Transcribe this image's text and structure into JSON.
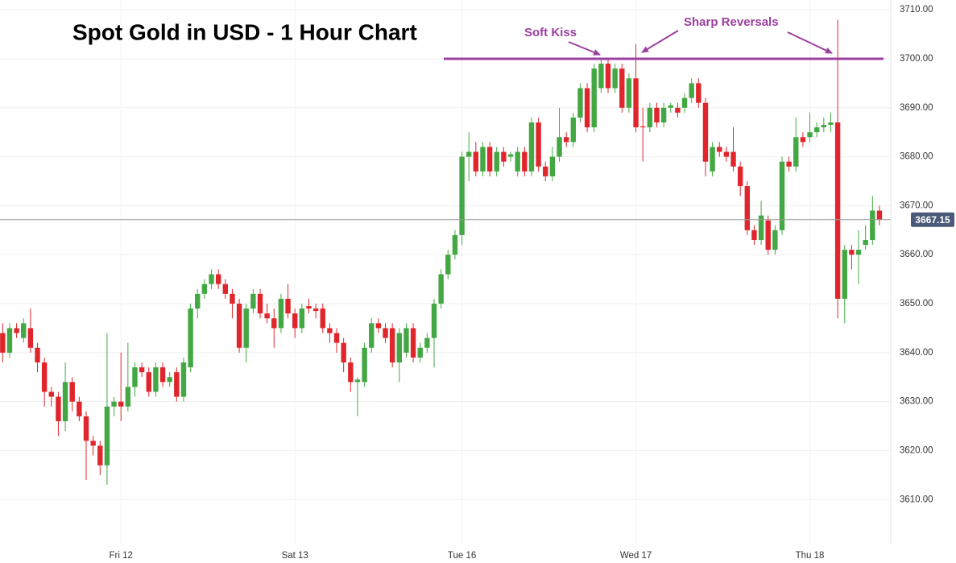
{
  "chart_data": {
    "type": "candlestick",
    "title": "Spot Gold in USD - 1 Hour Chart",
    "annotations": [
      {
        "text": "Soft Kiss"
      },
      {
        "text": "Sharp Reversals"
      }
    ],
    "hline": {
      "value": 3700,
      "color": "#9b3fa0"
    },
    "current_price": 3667.15,
    "up_color": "#43a843",
    "down_color": "#e0262c",
    "grid": true,
    "ylim": [
      3601,
      3712
    ],
    "yticks": [
      {
        "value": 3610,
        "label": "3610.00"
      },
      {
        "value": 3620,
        "label": "3620.00"
      },
      {
        "value": 3630,
        "label": "3630.00"
      },
      {
        "value": 3640,
        "label": "3640.00"
      },
      {
        "value": 3650,
        "label": "3650.00"
      },
      {
        "value": 3660,
        "label": "3660.00"
      },
      {
        "value": 3670,
        "label": "3670.00"
      },
      {
        "value": 3680,
        "label": "3680.00"
      },
      {
        "value": 3690,
        "label": "3690.00"
      },
      {
        "value": 3700,
        "label": "3700.00"
      },
      {
        "value": 3710,
        "label": "3710.00"
      }
    ],
    "categories": [
      null,
      null,
      null,
      null,
      null,
      null,
      null,
      null,
      null,
      null,
      null,
      null,
      null,
      null,
      null,
      null,
      null,
      "Fri 12",
      null,
      null,
      null,
      null,
      null,
      null,
      null,
      null,
      null,
      null,
      null,
      null,
      null,
      null,
      null,
      null,
      null,
      null,
      null,
      null,
      null,
      null,
      null,
      null,
      "Sat 13",
      null,
      null,
      null,
      null,
      null,
      null,
      null,
      null,
      null,
      null,
      null,
      null,
      null,
      null,
      null,
      null,
      null,
      null,
      null,
      null,
      null,
      null,
      null,
      "Tue 16",
      null,
      null,
      null,
      null,
      null,
      null,
      null,
      null,
      null,
      null,
      null,
      null,
      null,
      null,
      null,
      null,
      null,
      null,
      null,
      null,
      null,
      null,
      null,
      null,
      "Wed 17",
      null,
      null,
      null,
      null,
      null,
      null,
      null,
      null,
      null,
      null,
      null,
      null,
      null,
      null,
      null,
      null,
      null,
      null,
      null,
      null,
      null,
      null,
      null,
      null,
      "Thu 18",
      null,
      null,
      null,
      null,
      null,
      null,
      null,
      null,
      null,
      null
    ],
    "open": [
      3644,
      3640,
      3645,
      3643,
      3645,
      3641,
      3638,
      3632,
      3631,
      3626,
      3634,
      3630,
      3627,
      3622,
      3621,
      3617,
      3629,
      3630,
      3629,
      3633,
      3637,
      3636,
      3632,
      3637,
      3634,
      3636,
      3631,
      3637,
      3649,
      3652,
      3654,
      3656,
      3654,
      3652,
      3650,
      3641,
      3649,
      3652,
      3648,
      3647,
      3645,
      3651,
      3648,
      3645,
      3649.5,
      3649,
      3649,
      3645,
      3644,
      3642,
      3638,
      3634,
      3634,
      3641,
      3646,
      3645,
      3645,
      3638,
      3640,
      3645,
      3639,
      3641,
      3643,
      3650,
      3656,
      3660,
      3664,
      3680,
      3681,
      3677,
      3682,
      3677,
      3681,
      3680,
      3677,
      3681,
      3677,
      3687,
      3678,
      3676,
      3680,
      3684,
      3683,
      3688,
      3694,
      3686,
      3694,
      3699,
      3694,
      3698,
      3690,
      3696,
      3686.2,
      3686,
      3690,
      3687,
      3690,
      3690,
      3690,
      3692,
      3695,
      3691,
      3677,
      3682,
      3681,
      3681,
      3678,
      3674,
      3665,
      3663,
      3667,
      3661,
      3665,
      3679,
      3678,
      3684,
      3684,
      3685,
      3686,
      3686.5,
      3687,
      3651,
      3661,
      3660,
      3662,
      3663,
      3669
    ],
    "high": [
      3646,
      3646,
      3646,
      3647,
      3649,
      3642,
      3639,
      3633,
      3632,
      3638,
      3635,
      3631,
      3628,
      3623,
      3622,
      3644,
      3631,
      3640,
      3642,
      3638,
      3638,
      3637,
      3638,
      3638,
      3636,
      3637,
      3639,
      3650,
      3653,
      3655,
      3657,
      3657,
      3655,
      3653,
      3651,
      3650,
      3653,
      3653,
      3650,
      3649,
      3652,
      3654,
      3649,
      3650,
      3651,
      3650,
      3650,
      3646,
      3645,
      3643,
      3639,
      3635,
      3642,
      3647,
      3647,
      3646,
      3646,
      3645,
      3646,
      3646,
      3642,
      3644,
      3651,
      3657,
      3661,
      3665,
      3681,
      3685,
      3683,
      3683,
      3683,
      3682,
      3682,
      3681,
      3682,
      3682,
      3688,
      3688,
      3679,
      3682,
      3690,
      3685,
      3689,
      3695,
      3695,
      3699,
      3700,
      3700,
      3699,
      3699,
      3697,
      3703,
      3690,
      3691,
      3691,
      3691,
      3691,
      3691,
      3693,
      3696,
      3696,
      3692,
      3683,
      3683,
      3682,
      3686,
      3679,
      3675,
      3666,
      3671,
      3668,
      3666,
      3680,
      3680,
      3688,
      3685,
      3689,
      3687,
      3688,
      3689,
      3708,
      3662,
      3662,
      3665,
      3666,
      3672,
      3670
    ],
    "low": [
      3638,
      3639,
      3643,
      3642,
      3640,
      3636,
      3629,
      3629,
      3623,
      3624,
      3628,
      3626,
      3614,
      3619,
      3615,
      3613,
      3627,
      3626,
      3628,
      3631,
      3635,
      3631,
      3631,
      3633,
      3633,
      3630,
      3630,
      3636,
      3647,
      3651,
      3653,
      3653,
      3651,
      3647,
      3640,
      3638,
      3648,
      3647,
      3646,
      3641,
      3644,
      3647,
      3643,
      3644,
      3648,
      3647,
      3644,
      3642,
      3640,
      3636,
      3632,
      3627,
      3633,
      3640,
      3644,
      3642,
      3637,
      3634,
      3639,
      3638,
      3638,
      3640,
      3637,
      3649,
      3655,
      3659,
      3662,
      3675,
      3676,
      3676,
      3676,
      3676,
      3678,
      3679,
      3676,
      3676,
      3676,
      3677,
      3675,
      3675,
      3679,
      3682,
      3682,
      3687,
      3685,
      3685,
      3693,
      3693,
      3693,
      3689,
      3689,
      3685,
      3679,
      3685,
      3686,
      3686,
      3689,
      3688,
      3689,
      3691,
      3690,
      3676,
      3676,
      3680,
      3679,
      3677,
      3672,
      3664,
      3662,
      3662,
      3660,
      3660,
      3664,
      3677,
      3677,
      3682,
      3683,
      3684,
      3685,
      3685,
      3647,
      3646,
      3657,
      3654,
      3661,
      3662,
      3666
    ],
    "close": [
      3640,
      3645,
      3644,
      3646,
      3641,
      3638,
      3632,
      3631,
      3626,
      3634,
      3630,
      3627,
      3622,
      3621,
      3617,
      3629,
      3630,
      3629,
      3633,
      3637,
      3636,
      3632,
      3637,
      3634,
      3635,
      3631,
      3638,
      3649,
      3652,
      3654,
      3656,
      3654,
      3652,
      3650,
      3641,
      3649,
      3652,
      3648,
      3647,
      3645,
      3651,
      3648,
      3645,
      3649,
      3649,
      3648.5,
      3645,
      3644,
      3642,
      3638,
      3634,
      3634.5,
      3641,
      3646,
      3645,
      3643,
      3638,
      3644,
      3645,
      3639,
      3641,
      3643,
      3650,
      3656,
      3660,
      3664,
      3680,
      3681,
      3677,
      3682,
      3677,
      3681,
      3679,
      3680.5,
      3681,
      3677,
      3687,
      3678,
      3676,
      3680,
      3684,
      3683,
      3688,
      3694,
      3686,
      3698,
      3699,
      3694,
      3698,
      3690,
      3696,
      3686,
      3686,
      3690,
      3687,
      3690,
      3690.5,
      3689,
      3692,
      3695,
      3691,
      3679,
      3682,
      3681,
      3680,
      3678,
      3674,
      3665,
      3663,
      3668,
      3661,
      3665,
      3679,
      3678,
      3684,
      3683,
      3685,
      3686,
      3686.5,
      3687,
      3651,
      3661,
      3660,
      3661,
      3663,
      3669,
      3667.15
    ]
  }
}
